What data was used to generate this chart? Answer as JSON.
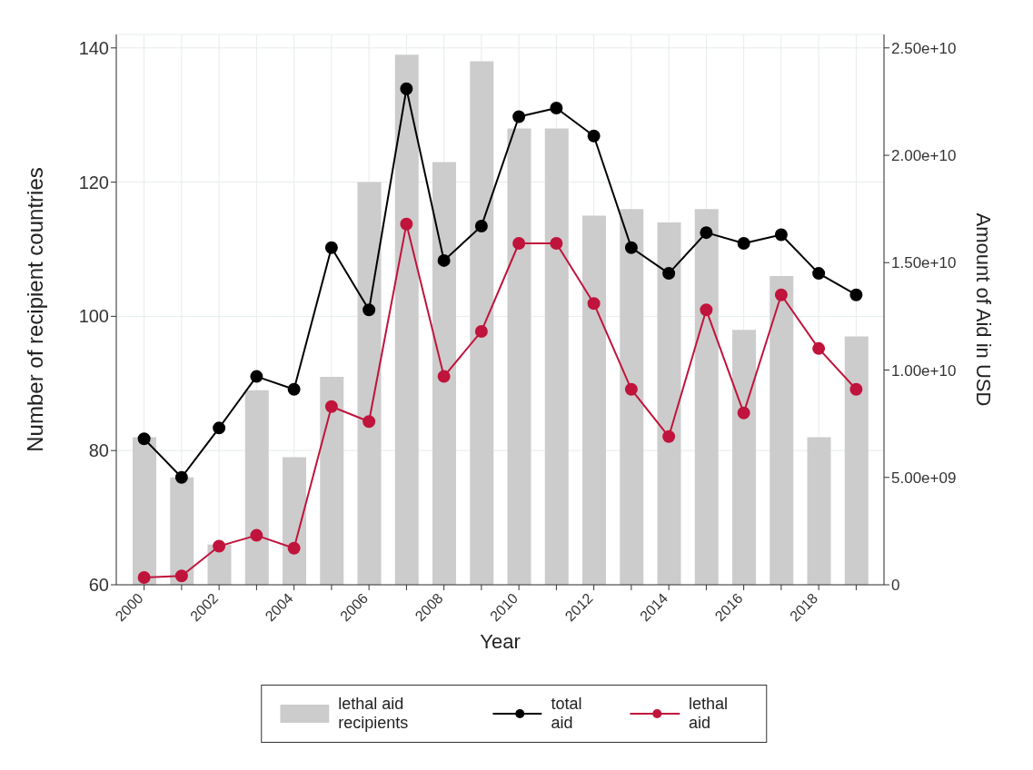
{
  "chart_data": {
    "type": "bar",
    "xlabel": "Year",
    "ylabel": "Number of recipient countries",
    "y2label": "Amount of Aid in USD",
    "categories": [
      "2000",
      null,
      "2002",
      null,
      "2004",
      null,
      "2006",
      null,
      "2008",
      null,
      "2010",
      null,
      "2012",
      null,
      "2014",
      null,
      "2016",
      null,
      "2018",
      null
    ],
    "series": [
      {
        "name": "lethal aid recipients",
        "color": "#cccccc",
        "values": [
          82,
          76,
          66,
          89,
          79,
          91,
          120,
          139,
          123,
          138,
          128,
          128,
          115,
          116,
          114,
          116,
          98,
          106,
          82,
          97
        ]
      },
      {
        "name": "total aid",
        "type": "line",
        "axis": "y2",
        "color": "#000000",
        "values": [
          6800000000.0,
          5000000000.0,
          7300000000.0,
          9700000000.0,
          9100000000.0,
          15700000000.0,
          12800000000.0,
          23100000000.0,
          15100000000.0,
          16700000000.0,
          21800000000.0,
          22200000000.0,
          20900000000.0,
          15700000000.0,
          14500000000.0,
          16400000000.0,
          15900000000.0,
          16300000000.0,
          14500000000.0,
          13500000000.0
        ]
      },
      {
        "name": "lethal aid",
        "type": "line",
        "axis": "y2",
        "color": "#c0143c",
        "values": [
          340000000.0,
          410000000.0,
          1800000000.0,
          2300000000.0,
          1700000000.0,
          8300000000.0,
          7600000000.0,
          16800000000.0,
          9700000000.0,
          11800000000.0,
          15900000000.0,
          15900000000.0,
          13100000000.0,
          9100000000.0,
          6900000000.0,
          12800000000.0,
          8000000000.0,
          13500000000.0,
          11000000000.0,
          9100000000.0
        ]
      }
    ],
    "ylim": [
      60,
      142
    ],
    "yticks": [
      60,
      80,
      100,
      120,
      140
    ],
    "y2lim": [
      0,
      25625000000.0
    ],
    "y2ticks": [
      {
        "value": 0,
        "label": "0"
      },
      {
        "value": 5000000000.0,
        "label": "5.00e+09"
      },
      {
        "value": 10000000000.0,
        "label": "1.00e+10"
      },
      {
        "value": 15000000000.0,
        "label": "1.50e+10"
      },
      {
        "value": 20000000000.0,
        "label": "2.00e+10"
      },
      {
        "value": 25000000000.0,
        "label": "2.50e+10"
      }
    ],
    "grid": true,
    "legend": "bottom",
    "marker": "circle",
    "line_style": "solid"
  }
}
